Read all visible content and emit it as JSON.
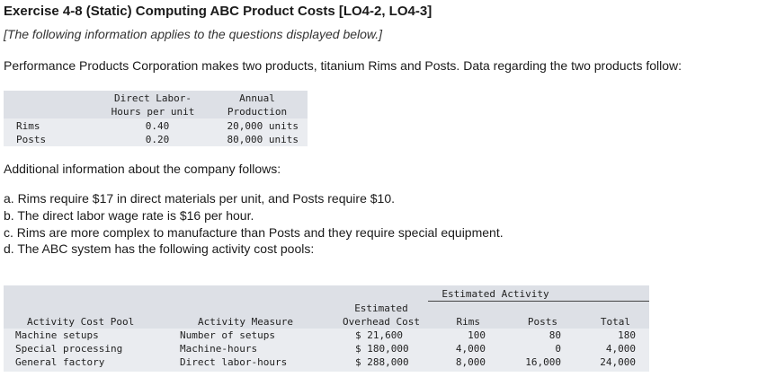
{
  "exercise": {
    "title": "Exercise 4-8 (Static) Computing ABC Product Costs [LO4-2, LO4-3]",
    "subtitle": "[The following information applies to the questions displayed below.]",
    "intro": "Performance Products Corporation makes two products, titanium Rims and Posts. Data regarding the two products follow:"
  },
  "products_table": {
    "headers": {
      "dlh_line1": "Direct Labor-",
      "dlh_line2": "Hours per unit",
      "prod_line1": "Annual",
      "prod_line2": "Production"
    },
    "rows": [
      {
        "name": "Rims",
        "dlh": "0.40",
        "production": "20,000 units"
      },
      {
        "name": "Posts",
        "dlh": "0.20",
        "production": "80,000 units"
      }
    ]
  },
  "additional": {
    "heading": "Additional information about the company follows:",
    "items": [
      "a. Rims require $17 in direct materials per unit, and Posts require $10.",
      "b. The direct labor wage rate is $16 per hour.",
      "c. Rims are more complex to manufacture than Posts and they require special equipment.",
      "d. The ABC system has the following activity cost pools:"
    ]
  },
  "activity_table": {
    "group_header": "Estimated Activity",
    "headers": {
      "pool": "Activity Cost Pool",
      "measure": "Activity Measure",
      "overhead_line1": "Estimated",
      "overhead_line2": "Overhead Cost",
      "rims": "Rims",
      "posts": "Posts",
      "total": "Total"
    },
    "rows": [
      {
        "pool": "Machine setups",
        "measure": "Number of setups",
        "overhead": "$ 21,600",
        "rims": "100",
        "posts": "80",
        "total": "180"
      },
      {
        "pool": "Special processing",
        "measure": "Machine-hours",
        "overhead": "$ 180,000",
        "rims": "4,000",
        "posts": "0",
        "total": "4,000"
      },
      {
        "pool": "General factory",
        "measure": "Direct labor-hours",
        "overhead": "$ 288,000",
        "rims": "8,000",
        "posts": "16,000",
        "total": "24,000"
      }
    ]
  }
}
